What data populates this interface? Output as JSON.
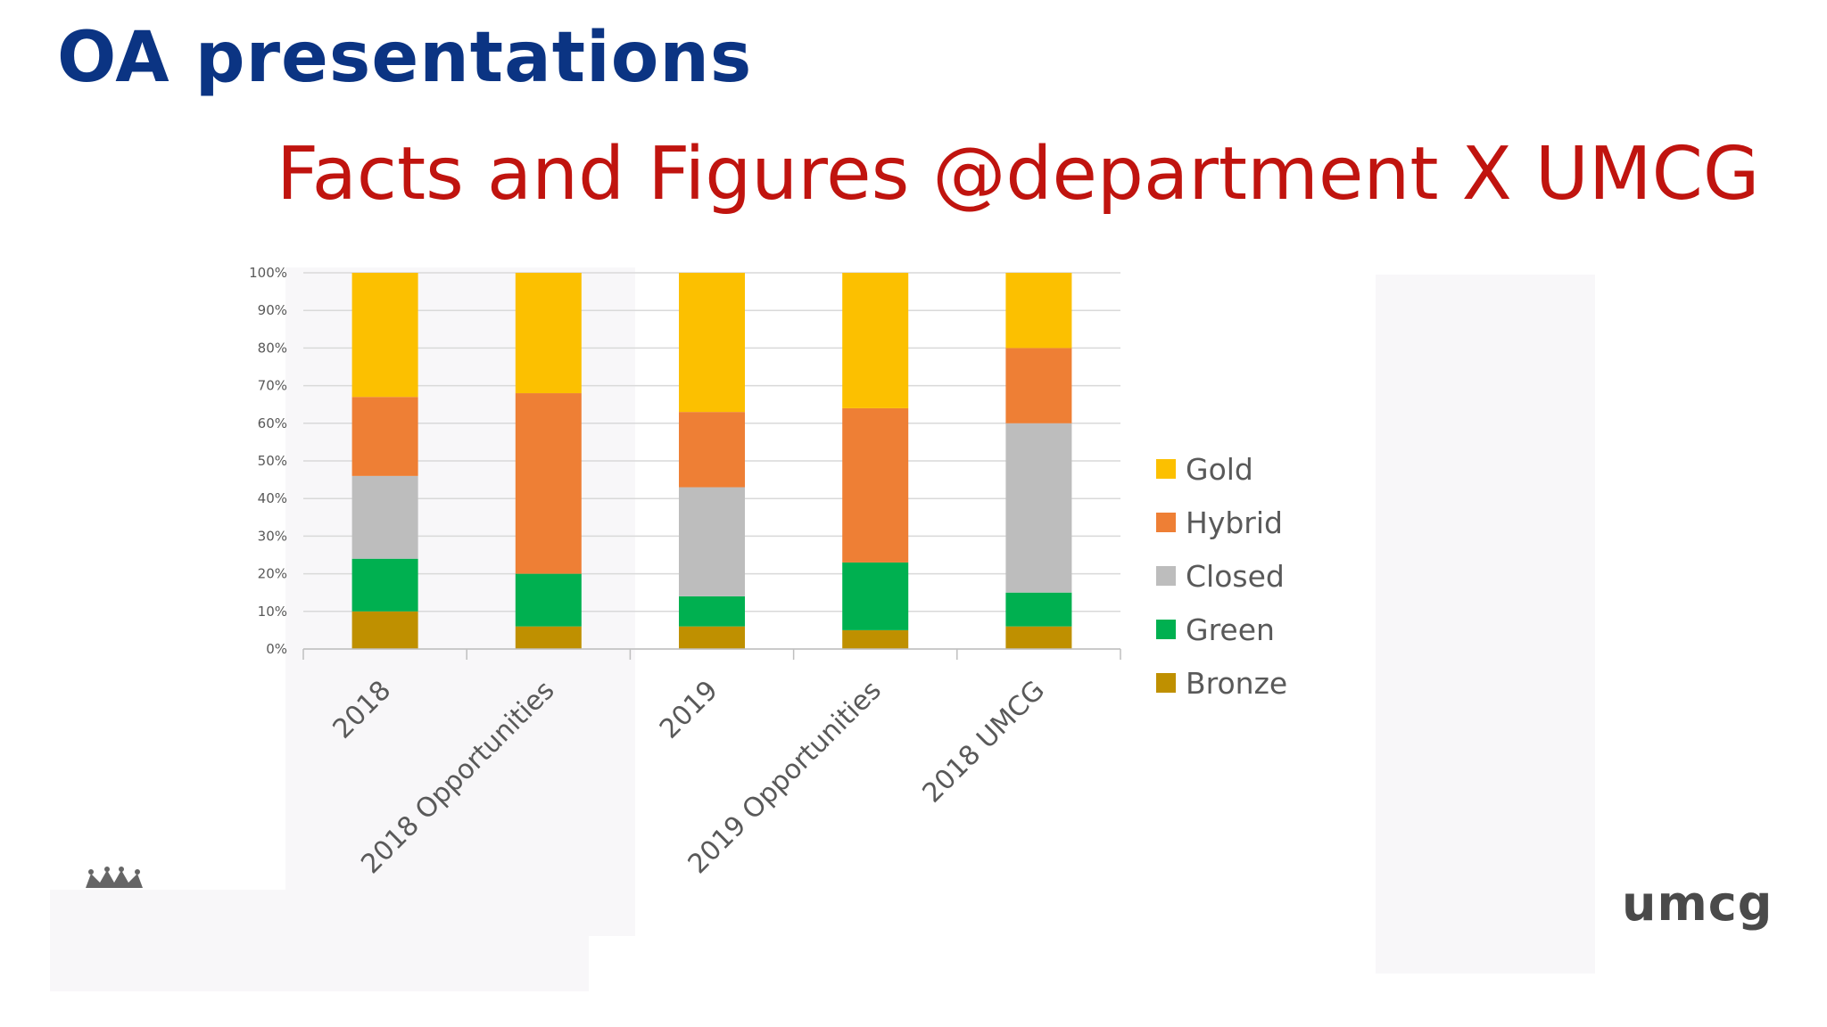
{
  "slide": {
    "heading": "OA presentations",
    "subtitle": "Facts and Figures @department X UMCG",
    "logo_text": "umcg"
  },
  "colors": {
    "heading": "#0b3483",
    "subtitle": "#c0140f",
    "Gold": "#fcc000",
    "Hybrid": "#ee7f35",
    "Closed": "#bdbdbd",
    "Green": "#00b050",
    "Bronze": "#bf9000"
  },
  "chart_data": {
    "type": "bar",
    "stacked": true,
    "categories": [
      "2018",
      "2018 Opportunities",
      "2019",
      "2019 Opportunities",
      "2018 UMCG"
    ],
    "y_ticks": [
      "0%",
      "10%",
      "20%",
      "30%",
      "40%",
      "50%",
      "60%",
      "70%",
      "80%",
      "90%",
      "100%"
    ],
    "ylim": [
      0,
      100
    ],
    "grid": true,
    "legend_position": "right",
    "series": [
      {
        "name": "Bronze",
        "values": [
          10,
          6,
          6,
          5,
          6
        ]
      },
      {
        "name": "Green",
        "values": [
          14,
          14,
          8,
          18,
          9
        ]
      },
      {
        "name": "Closed",
        "values": [
          22,
          0,
          29,
          0,
          45
        ]
      },
      {
        "name": "Hybrid",
        "values": [
          21,
          48,
          20,
          41,
          20
        ]
      },
      {
        "name": "Gold",
        "values": [
          33,
          32,
          37,
          36,
          20
        ]
      }
    ],
    "legend_order": [
      "Gold",
      "Hybrid",
      "Closed",
      "Green",
      "Bronze"
    ]
  }
}
